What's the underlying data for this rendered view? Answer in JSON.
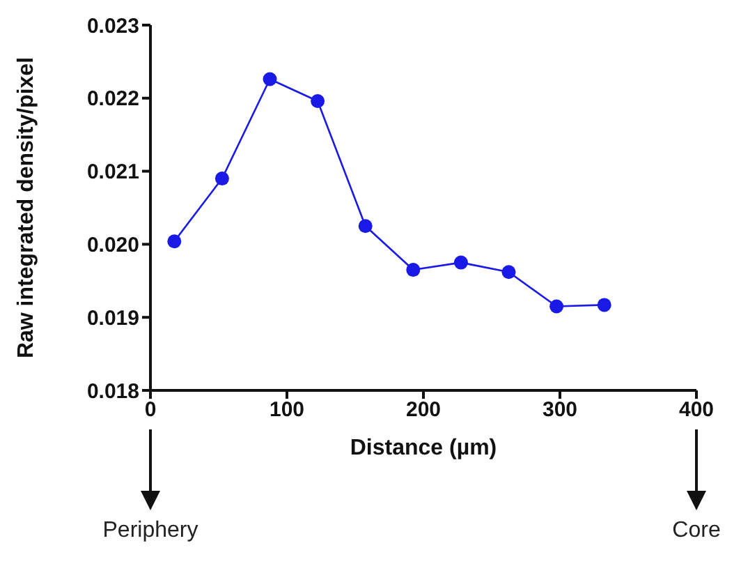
{
  "chart_data": {
    "type": "line",
    "xlabel": "Distance (µm)",
    "ylabel": "Raw integrated density/pixel",
    "x": [
      17.5,
      52.5,
      87.5,
      122.5,
      157.5,
      192.5,
      227.5,
      262.5,
      297.5,
      332.5
    ],
    "series": [
      {
        "color": "#1a1ae6",
        "values": [
          0.02004,
          0.0209,
          0.02226,
          0.02196,
          0.02025,
          0.01965,
          0.01975,
          0.01962,
          0.01915,
          0.01917
        ]
      }
    ],
    "xlim": [
      0,
      400
    ],
    "xticks": [
      0,
      100,
      200,
      300,
      400
    ],
    "ylim": [
      0.018,
      0.023
    ],
    "yticks": [
      0.018,
      0.019,
      {
        "value": 0.02,
        "label": "0.020"
      },
      0.021,
      0.022,
      0.023
    ],
    "grid": false,
    "legend": false,
    "marker": "circle",
    "line_style": "solid",
    "annotations": [
      "Periphery",
      "Core"
    ]
  }
}
